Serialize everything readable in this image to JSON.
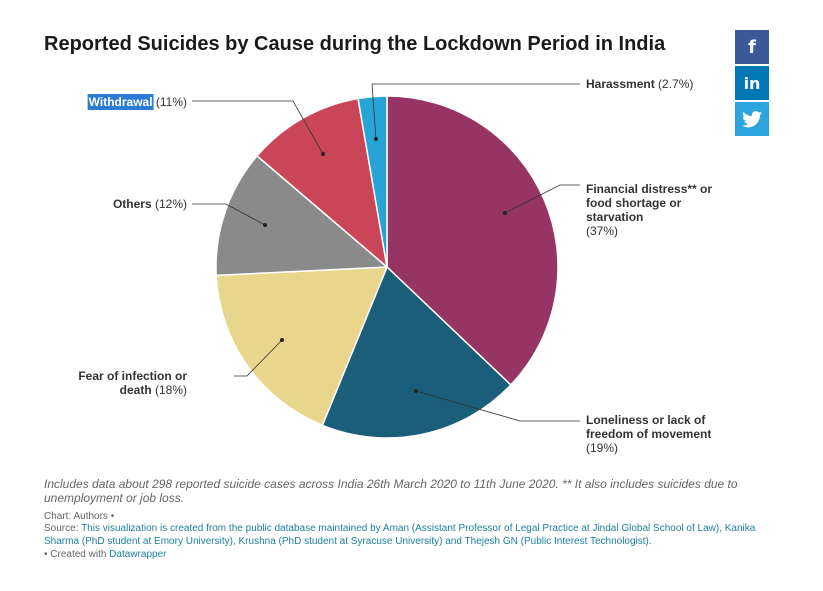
{
  "title": "Reported Suicides by Cause during the Lockdown Period in India",
  "share": {
    "facebook_icon": "f",
    "linkedin_icon": "in",
    "twitter_icon": "🐦",
    "facebook_color": "#3b5998",
    "linkedin_color": "#0077b5",
    "twitter_color": "#2ea4df"
  },
  "chart_data": {
    "type": "pie",
    "slices": [
      {
        "name": "Financial distress** or food shortage or starvation",
        "lines": [
          "Financial distress** or",
          "food shortage or",
          "starvation"
        ],
        "pct_label": "(37%)",
        "value": 37,
        "color": "#963463"
      },
      {
        "name": "Loneliness or lack of freedom of movement",
        "lines": [
          "Loneliness or lack of",
          "freedom of movement"
        ],
        "pct_label": "(19%)",
        "value": 19,
        "color": "#1a5e7a"
      },
      {
        "name": "Fear of infection or death",
        "lines": [
          "Fear of infection or",
          "death"
        ],
        "pct_label": "(18%)",
        "value": 18,
        "color": "#e8d68c"
      },
      {
        "name": "Others",
        "lines": [
          "Others"
        ],
        "pct_label": "(12%)",
        "value": 12,
        "color": "#8a8a8a"
      },
      {
        "name": "Withdrawal",
        "lines": [
          "Withdrawal"
        ],
        "pct_label": "(11%)",
        "value": 11,
        "color": "#cb4558"
      },
      {
        "name": "Harassment",
        "lines": [
          "Harassment"
        ],
        "pct_label": "(2.7%)",
        "value": 2.7,
        "color": "#28a3d6"
      }
    ],
    "legend": "none",
    "highlight_color": "#2b7bd4"
  },
  "notes": "Includes data about 298 reported suicide cases across India 26th March 2020 to 11th June 2020. ** It also includes suicides due to unemployment or job loss.",
  "credit": "Chart: Authors •",
  "source_prefix": "Source:",
  "source_link": "This visualization is created from the public database maintained by Aman (Assistant Professor of Legal Practice at Jindal Global School of Law), Kanika Sharma (PhD student at Emory University), Krushna (PhD student at Syracuse University) and Thejesh GN (Public Interest Technologist).",
  "created_prefix": "• Created with",
  "created_link": "Datawrapper"
}
